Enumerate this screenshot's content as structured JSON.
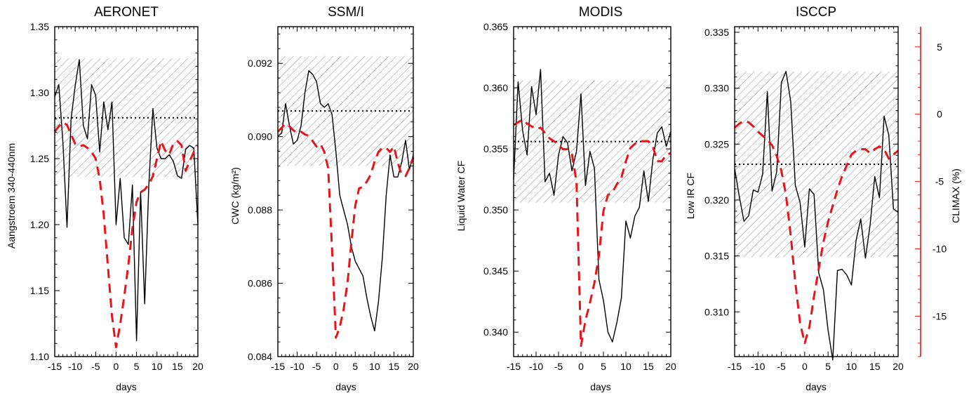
{
  "colors": {
    "observation": "#000000",
    "climax": "#e8141b",
    "hatch": "#777777",
    "mean_line": "#000000"
  },
  "right_axis": {
    "label": "CLIMAX (%)",
    "range": [
      -18,
      6.5
    ],
    "ticks": [
      5,
      0,
      -5,
      -10,
      -15
    ],
    "tick_labels": [
      "5",
      "0",
      "-5",
      "-10",
      "-15"
    ]
  },
  "chart_data": [
    {
      "type": "line",
      "title": "AERONET",
      "xlabel": "days",
      "ylabel": "Aangstroem 340-440nm",
      "xlim": [
        -15,
        20
      ],
      "ylim": [
        1.1,
        1.35
      ],
      "xticks": [
        -15,
        -10,
        -5,
        0,
        5,
        10,
        15,
        20
      ],
      "xtick_labels": [
        "-15",
        "-10",
        "-5",
        "0",
        "5",
        "10",
        "15",
        "20"
      ],
      "yticks": [
        1.1,
        1.15,
        1.2,
        1.25,
        1.3,
        1.35
      ],
      "ytick_labels": [
        "1.10",
        "1.15",
        "1.20",
        "1.25",
        "1.30",
        "1.35"
      ],
      "mean": 1.281,
      "band": [
        1.236,
        1.326
      ],
      "observation_x": [
        -15,
        -14,
        -13,
        -12,
        -11,
        -10,
        -9,
        -8,
        -7,
        -6,
        -5,
        -4,
        -3,
        -2,
        -1,
        0,
        1,
        2,
        3,
        4,
        5,
        6,
        7,
        8,
        9,
        10,
        11,
        12,
        13,
        14,
        15,
        16,
        17,
        18,
        19,
        20
      ],
      "observation_y": [
        1.297,
        1.306,
        1.262,
        1.198,
        1.28,
        1.305,
        1.325,
        1.275,
        1.265,
        1.306,
        1.298,
        1.255,
        1.293,
        1.272,
        1.293,
        1.2,
        1.235,
        1.19,
        1.185,
        1.23,
        1.112,
        1.225,
        1.14,
        1.23,
        1.288,
        1.258,
        1.25,
        1.25,
        1.253,
        1.248,
        1.237,
        1.235,
        1.257,
        1.26,
        1.258,
        1.2
      ],
      "climax_x": [
        -15,
        -14,
        -13,
        -12,
        -11,
        -10,
        -9,
        -8,
        -7,
        -6,
        -5,
        -4,
        -3,
        -2,
        -1,
        0,
        1,
        2,
        3,
        4,
        5,
        6,
        7,
        8,
        9,
        10,
        11,
        12,
        13,
        14,
        15,
        16,
        17,
        18,
        19,
        20
      ],
      "climax_y": [
        -1.3,
        -0.9,
        -0.6,
        -0.8,
        -1.5,
        -2.2,
        -2.4,
        -2.3,
        -2.5,
        -2.8,
        -3.3,
        -4.8,
        -7.5,
        -11.3,
        -15.0,
        -17.3,
        -15.6,
        -13.5,
        -11.2,
        -8.5,
        -6.5,
        -5.8,
        -5.6,
        -5.2,
        -4.6,
        -3.3,
        -2.0,
        -2.7,
        -3.0,
        -2.2,
        -2.0,
        -2.3,
        -4.2,
        -3.5,
        -2.8,
        -2.4
      ]
    },
    {
      "type": "line",
      "title": "SSM/I",
      "xlabel": "days",
      "ylabel": "CWC (kg/m²)",
      "xlim": [
        -15,
        20
      ],
      "ylim": [
        0.084,
        0.093
      ],
      "xticks": [
        -15,
        -10,
        -5,
        0,
        5,
        10,
        15,
        20
      ],
      "xtick_labels": [
        "-15",
        "-10",
        "-5",
        "0",
        "5",
        "10",
        "15",
        "20"
      ],
      "yticks": [
        0.084,
        0.086,
        0.088,
        0.09,
        0.092
      ],
      "ytick_labels": [
        "0.084",
        "0.086",
        "0.088",
        "0.090",
        "0.092"
      ],
      "mean": 0.0907,
      "band": [
        0.0892,
        0.0922
      ],
      "observation_x": [
        -15,
        -14,
        -13,
        -12,
        -11,
        -10,
        -9,
        -8,
        -7,
        -6,
        -5,
        -4,
        -3,
        -2,
        -1,
        0,
        1,
        2,
        3,
        4,
        5,
        6,
        7,
        8,
        9,
        10,
        11,
        12,
        13,
        14,
        15,
        16,
        17,
        18,
        19,
        20
      ],
      "observation_y": [
        0.09,
        0.0901,
        0.0909,
        0.0903,
        0.0898,
        0.0899,
        0.0903,
        0.0912,
        0.0918,
        0.0917,
        0.0915,
        0.0909,
        0.0908,
        0.0909,
        0.0906,
        0.0896,
        0.0884,
        0.088,
        0.0876,
        0.087,
        0.0866,
        0.0864,
        0.0862,
        0.0856,
        0.0851,
        0.0847,
        0.0855,
        0.0867,
        0.0884,
        0.0895,
        0.0889,
        0.0889,
        0.0893,
        0.0899,
        0.0891,
        0.0895
      ],
      "climax_x": [
        -15,
        -14,
        -13,
        -12,
        -11,
        -10,
        -9,
        -8,
        -7,
        -6,
        -5,
        -4,
        -3,
        -2,
        -1,
        0,
        1,
        2,
        3,
        4,
        5,
        6,
        7,
        8,
        9,
        10,
        11,
        12,
        13,
        14,
        15,
        16,
        17,
        18,
        19,
        20
      ],
      "climax_y": [
        -1.3,
        -1.0,
        -0.7,
        -0.9,
        -1.2,
        -1.4,
        -1.3,
        -1.5,
        -1.6,
        -2.0,
        -2.4,
        -2.2,
        -2.8,
        -4.0,
        -10.0,
        -16.6,
        -15.8,
        -14.5,
        -12.5,
        -9.5,
        -6.8,
        -5.5,
        -5.4,
        -5.0,
        -4.5,
        -3.5,
        -2.8,
        -2.5,
        -2.5,
        -2.8,
        -2.4,
        -3.6,
        -4.5,
        -4.6,
        -4.0,
        -3.2
      ]
    },
    {
      "type": "line",
      "title": "MODIS",
      "xlabel": "days",
      "ylabel": "Liquid Water CF",
      "xlim": [
        -15,
        20
      ],
      "ylim": [
        0.338,
        0.365
      ],
      "xticks": [
        -15,
        -10,
        -5,
        0,
        5,
        10,
        15,
        20
      ],
      "xtick_labels": [
        "-15",
        "-10",
        "-5",
        "0",
        "5",
        "10",
        "15",
        "20"
      ],
      "yticks": [
        0.34,
        0.345,
        0.35,
        0.355,
        0.36,
        0.365
      ],
      "ytick_labels": [
        "0.340",
        "0.345",
        "0.350",
        "0.355",
        "0.360",
        "0.365"
      ],
      "mean": 0.3556,
      "band": [
        0.3506,
        0.3606
      ],
      "observation_x": [
        -15,
        -14,
        -13,
        -12,
        -11,
        -10,
        -9,
        -8,
        -7,
        -6,
        -5,
        -4,
        -3,
        -2,
        -1,
        0,
        1,
        2,
        3,
        4,
        5,
        6,
        7,
        8,
        9,
        10,
        11,
        12,
        13,
        14,
        15,
        16,
        17,
        18,
        19,
        20
      ],
      "observation_y": [
        0.3525,
        0.3605,
        0.3565,
        0.3545,
        0.3601,
        0.3578,
        0.3615,
        0.3523,
        0.353,
        0.3512,
        0.3545,
        0.356,
        0.3555,
        0.3532,
        0.3548,
        0.3595,
        0.352,
        0.3548,
        0.3534,
        0.3443,
        0.3426,
        0.34,
        0.3392,
        0.3408,
        0.3428,
        0.3491,
        0.3477,
        0.3495,
        0.3502,
        0.3532,
        0.3507,
        0.3541,
        0.3563,
        0.3568,
        0.3552,
        0.3564
      ],
      "climax_x": [
        -15,
        -14,
        -13,
        -12,
        -11,
        -10,
        -9,
        -8,
        -7,
        -6,
        -5,
        -4,
        -3,
        -2,
        -1,
        0,
        1,
        2,
        3,
        4,
        5,
        6,
        7,
        8,
        9,
        10,
        11,
        12,
        13,
        14,
        15,
        16,
        17,
        18,
        19,
        20
      ],
      "climax_y": [
        -0.8,
        -0.6,
        -0.4,
        -0.7,
        -0.9,
        -1.1,
        -1.0,
        -1.4,
        -1.8,
        -2.0,
        -2.3,
        -2.6,
        -2.6,
        -3.0,
        -5.0,
        -17.2,
        -15.3,
        -14.0,
        -12.5,
        -10.5,
        -7.2,
        -6.0,
        -5.8,
        -5.2,
        -4.7,
        -3.5,
        -2.5,
        -2.2,
        -2.0,
        -2.0,
        -2.0,
        -2.4,
        -3.5,
        -3.5,
        -3.0,
        -2.9
      ]
    },
    {
      "type": "line",
      "title": "ISCCP",
      "xlabel": "days",
      "ylabel": "Low IR CF",
      "xlim": [
        -15,
        20
      ],
      "ylim": [
        0.306,
        0.3355
      ],
      "xticks": [
        -15,
        -10,
        -5,
        0,
        5,
        10,
        15,
        20
      ],
      "xtick_labels": [
        "-15",
        "-10",
        "-5",
        "0",
        "5",
        "10",
        "15",
        "20"
      ],
      "yticks": [
        0.31,
        0.315,
        0.32,
        0.325,
        0.33,
        0.335
      ],
      "ytick_labels": [
        "0.310",
        "0.315",
        "0.320",
        "0.325",
        "0.330",
        "0.335"
      ],
      "mean": 0.3232,
      "band": [
        0.3149,
        0.3315
      ],
      "observation_x": [
        -15,
        -14,
        -13,
        -12,
        -11,
        -10,
        -9,
        -8,
        -7,
        -6,
        -5,
        -4,
        -3,
        -2,
        -1,
        0,
        1,
        2,
        3,
        4,
        5,
        6,
        7,
        8,
        9,
        10,
        11,
        12,
        13,
        14,
        15,
        16,
        17,
        18,
        19,
        20
      ],
      "observation_y": [
        0.3228,
        0.3203,
        0.3181,
        0.3186,
        0.3209,
        0.3207,
        0.3223,
        0.3297,
        0.3208,
        0.3225,
        0.3305,
        0.3315,
        0.3288,
        0.3213,
        0.3198,
        0.3158,
        0.321,
        0.3205,
        0.3135,
        0.312,
        0.3084,
        0.3057,
        0.3137,
        0.3138,
        0.3133,
        0.3124,
        0.3164,
        0.3183,
        0.3148,
        0.3178,
        0.3221,
        0.3202,
        0.3275,
        0.3258,
        0.3192,
        0.3189
      ],
      "climax_x": [
        -15,
        -14,
        -13,
        -12,
        -11,
        -10,
        -9,
        -8,
        -7,
        -6,
        -5,
        -4,
        -3,
        -2,
        -1,
        0,
        1,
        2,
        3,
        4,
        5,
        6,
        7,
        8,
        9,
        10,
        11,
        12,
        13,
        14,
        15,
        16,
        17,
        18,
        19,
        20
      ],
      "climax_y": [
        -1.0,
        -0.7,
        -0.5,
        -0.6,
        -0.9,
        -1.3,
        -1.6,
        -1.9,
        -2.3,
        -3.1,
        -4.2,
        -6.0,
        -9.0,
        -12.5,
        -15.5,
        -17.0,
        -15.8,
        -13.5,
        -11.5,
        -9.5,
        -8.0,
        -6.8,
        -5.6,
        -4.6,
        -3.8,
        -3.0,
        -2.7,
        -2.6,
        -2.6,
        -2.9,
        -2.6,
        -2.4,
        -2.6,
        -3.3,
        -3.0,
        -2.7
      ]
    }
  ]
}
